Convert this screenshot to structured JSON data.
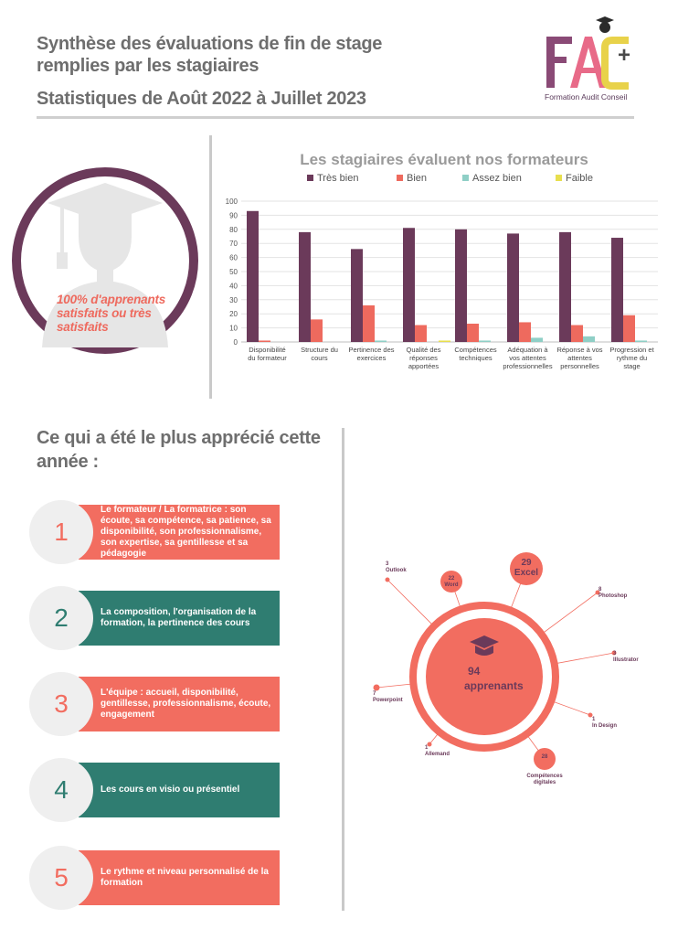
{
  "header": {
    "line1": "Synthèse des évaluations de fin de stage",
    "line2": "remplies par les stagiaires",
    "line3": "Statistiques de Août 2022 à Juillet 2023"
  },
  "logo": {
    "letters": "FAC",
    "plus": "+",
    "caption": "Formation Audit Conseil",
    "colors": {
      "purple": "#8a4a76",
      "pink": "#e86a88",
      "yellow": "#e8d24a"
    }
  },
  "badge": {
    "text": "100% d'apprenants satisfaits ou très satisfaits",
    "ring_color": "#6b3a5a",
    "icon": "graduate-silhouette-icon"
  },
  "chart_data": {
    "type": "bar",
    "title": "Les stagiaires évaluent nos formateurs",
    "legend_position": "top",
    "grid": true,
    "ylim": [
      0,
      100
    ],
    "yticks": [
      0,
      10,
      20,
      30,
      40,
      50,
      60,
      70,
      80,
      90,
      100
    ],
    "categories": [
      [
        "Disponibilité",
        "du formateur"
      ],
      [
        "Structure du",
        "cours"
      ],
      [
        "Pertinence des",
        "exercices"
      ],
      [
        "Qualité des",
        "réponses",
        "apportées"
      ],
      [
        "Compétences",
        "techniques"
      ],
      [
        "Adéquation à",
        "vos attentes",
        "professionnelles"
      ],
      [
        "Réponse à vos",
        "attentes",
        "personnelles"
      ],
      [
        "Progression et",
        "rythme du",
        "stage"
      ]
    ],
    "series": [
      {
        "name": "Très bien",
        "color": "#6b3a5a",
        "values": [
          93,
          78,
          66,
          81,
          80,
          77,
          78,
          74
        ]
      },
      {
        "name": "Bien",
        "color": "#ee6a5e",
        "values": [
          1,
          16,
          26,
          12,
          13,
          14,
          12,
          19
        ]
      },
      {
        "name": "Assez bien",
        "color": "#8fcfc6",
        "values": [
          0,
          0,
          1,
          0,
          1,
          3,
          4,
          1
        ]
      },
      {
        "name": "Faible",
        "color": "#e8df4e",
        "values": [
          0,
          0,
          0,
          1,
          0,
          0,
          0,
          0
        ]
      }
    ]
  },
  "appreciated": {
    "title": "Ce qui a été le plus apprécié cette année :",
    "items": [
      {
        "num": "1",
        "text": "Le formateur / La formatrice : son écoute, sa compétence, sa patience, sa disponibilité, son professionnalisme, son expertise, sa gentillesse et sa pédagogie",
        "style": "salmon"
      },
      {
        "num": "2",
        "text": "La composition, l'organisation de la formation, la pertinence des cours",
        "style": "teal"
      },
      {
        "num": "3",
        "text": "L'équipe : accueil, disponibilité, gentillesse, professionnalisme, écoute, engagement",
        "style": "salmon"
      },
      {
        "num": "4",
        "text": "Les cours en visio ou présentiel",
        "style": "teal"
      },
      {
        "num": "5",
        "text": "Le rythme et niveau personnalisé de la formation",
        "style": "salmon"
      }
    ]
  },
  "bubble_chart": {
    "center_value": "94",
    "center_label": "apprenants",
    "center_icon": "graduation-cap-icon",
    "color": "#f26d60",
    "label_color": "#6b3a5a",
    "items": [
      {
        "value": "3",
        "label": "Outlook"
      },
      {
        "value": "22",
        "label": "Word"
      },
      {
        "value": "29",
        "label": "Excel"
      },
      {
        "value": "8",
        "label": "Photoshop"
      },
      {
        "value": "3",
        "label": "Illustrator"
      },
      {
        "value": "1",
        "label": "In Design"
      },
      {
        "value": "28",
        "label": "Compétences digitales"
      },
      {
        "value": "1",
        "label": "Allemand"
      },
      {
        "value": "7",
        "label": "Powerpoint"
      }
    ]
  }
}
